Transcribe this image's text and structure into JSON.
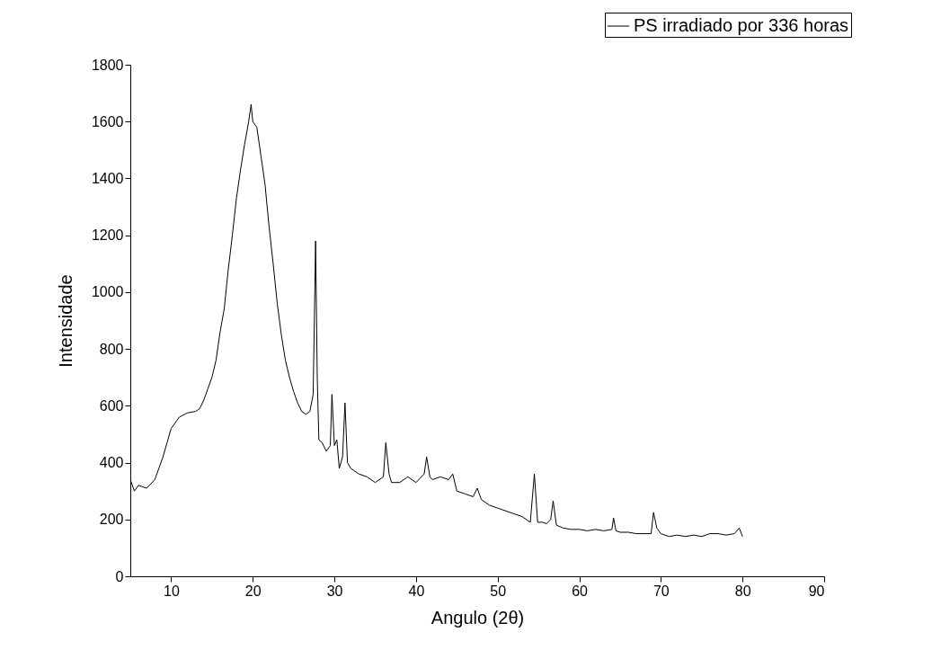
{
  "chart_data": {
    "type": "line",
    "xlabel": "Angulo (2θ)",
    "ylabel": "Intensidade",
    "xlim": [
      5,
      90
    ],
    "ylim": [
      0,
      1800
    ],
    "xticks": [
      10,
      20,
      30,
      40,
      50,
      60,
      70,
      80,
      90
    ],
    "yticks": [
      0,
      200,
      400,
      600,
      800,
      1000,
      1200,
      1400,
      1600,
      1800
    ],
    "grid": false,
    "legend": "top right",
    "marker": "none",
    "line_style": "solid",
    "series": [
      {
        "name": "PS irradiado por 336 horas",
        "color": "#000000",
        "x": [
          5,
          5.5,
          6,
          7,
          8,
          9,
          9.5,
          10,
          10.5,
          11,
          12,
          13,
          13.5,
          14,
          14.5,
          15,
          15.5,
          16,
          16.5,
          17,
          17.5,
          18,
          18.5,
          19,
          19.5,
          19.8,
          20,
          20.5,
          21,
          21.5,
          22,
          22.5,
          23,
          23.5,
          24,
          24.5,
          25,
          25.5,
          26,
          26.5,
          27,
          27.4,
          27.7,
          27.9,
          28.1,
          28.5,
          29,
          29.5,
          29.7,
          30,
          30.3,
          30.6,
          31,
          31.3,
          31.6,
          32,
          33,
          34,
          35,
          36,
          36.3,
          36.7,
          37,
          38,
          39,
          40,
          41,
          41.3,
          41.7,
          42,
          43,
          44,
          44.5,
          45,
          46,
          47,
          47.5,
          48,
          49,
          50,
          51,
          52,
          53,
          54,
          54.5,
          54.9,
          55.5,
          56,
          56.5,
          56.8,
          57.2,
          58,
          59,
          60,
          61,
          62,
          63,
          64,
          64.2,
          64.5,
          65,
          66,
          67,
          68,
          68.8,
          69.1,
          69.5,
          70,
          71,
          72,
          73,
          74,
          75,
          76,
          77,
          78,
          79,
          79.6,
          80
        ],
        "values": [
          340,
          300,
          320,
          310,
          340,
          420,
          470,
          520,
          540,
          560,
          575,
          580,
          590,
          620,
          660,
          700,
          760,
          860,
          940,
          1080,
          1200,
          1330,
          1430,
          1520,
          1600,
          1660,
          1600,
          1580,
          1480,
          1380,
          1230,
          1100,
          960,
          850,
          760,
          700,
          650,
          610,
          580,
          570,
          580,
          640,
          1180,
          700,
          480,
          470,
          440,
          460,
          640,
          460,
          480,
          380,
          420,
          610,
          400,
          380,
          360,
          350,
          330,
          350,
          470,
          360,
          330,
          330,
          350,
          330,
          360,
          420,
          350,
          340,
          350,
          340,
          360,
          300,
          290,
          280,
          310,
          270,
          250,
          240,
          230,
          220,
          210,
          190,
          360,
          190,
          190,
          185,
          200,
          265,
          180,
          170,
          165,
          165,
          160,
          165,
          160,
          165,
          205,
          160,
          155,
          155,
          150,
          150,
          150,
          225,
          170,
          150,
          140,
          145,
          140,
          145,
          140,
          150,
          150,
          145,
          150,
          170,
          140
        ]
      }
    ]
  }
}
